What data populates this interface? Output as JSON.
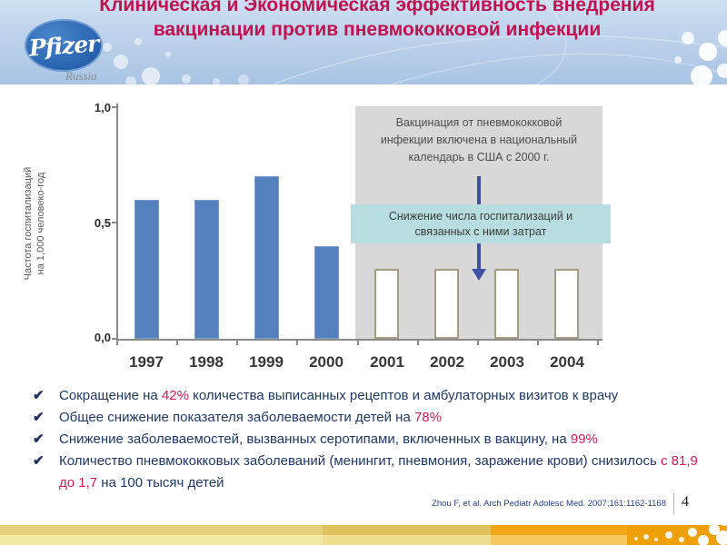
{
  "header": {
    "logo_text": "Pfizer",
    "logo_subtext": "Russia",
    "title_line1": "Клиническая и Экономическая эффективность внедрения",
    "title_line2": "вакцинации против пневмококковой инфекции"
  },
  "chart_data": {
    "type": "bar",
    "title": "",
    "ylabel_line1": "Частота госпитализаций",
    "ylabel_line2": "на 1,000 человеко-год",
    "categories": [
      "1997",
      "1998",
      "1999",
      "2000",
      "2001",
      "2002",
      "2003",
      "2004"
    ],
    "values": [
      0.6,
      0.6,
      0.7,
      0.4,
      0.3,
      0.3,
      0.3,
      0.3
    ],
    "bar_styles": [
      "filled",
      "filled",
      "filled",
      "filled",
      "outline",
      "outline",
      "outline",
      "outline"
    ],
    "ylim": [
      0,
      1.0
    ],
    "yticks": [
      "1,0",
      "0,5",
      "0,0"
    ],
    "grid": false,
    "legend": false,
    "highlight_region_years": [
      "2001",
      "2002",
      "2003",
      "2004"
    ],
    "annotations": {
      "callout_line1": "Вакцинация от пневмококковой",
      "callout_line2": "инфекции включена в национальный",
      "callout_line3": "календарь в США с 2000 г.",
      "result_line1": "Снижение числа госпитализаций и",
      "result_line2": "связанных с ними затрат"
    }
  },
  "bullets": [
    {
      "pre": "Сокращение на ",
      "highlight": "42%",
      "post": " количества выписанных рецептов и амбулаторных визитов к врачу"
    },
    {
      "pre": "Общее снижение показателя заболеваемости детей на ",
      "highlight": "78%",
      "post": ""
    },
    {
      "pre": "Снижение заболеваемостей, вызванных серотипами, включенных в вакцину, на ",
      "highlight": "99%",
      "post": ""
    },
    {
      "pre": "Количество пневмококковых заболеваний (менингит, пневмония, заражение  крови) снизилось ",
      "highlight": "с 81,9 до 1,7",
      "post": " на 100 тысяч детей"
    }
  ],
  "footer": {
    "citation": "Zhou F, et al. Arch Pediatr Adolesc Med. 2007;161:1162-1168",
    "page_number": "4"
  },
  "colors": {
    "title_red": "#c0124f",
    "highlight_red": "#d5195a",
    "bullet_navy": "#1f3864",
    "bar_blue": "#5580be",
    "outline_bar_border": "#a79b82",
    "panel_gray": "#d8d8d8",
    "result_teal": "#b7dde1",
    "arrow_navy": "#3f51a5",
    "header_blue": "#b9cfe9",
    "footer_orange": "#efa007",
    "footer_yellow": "#f2eaa4"
  }
}
